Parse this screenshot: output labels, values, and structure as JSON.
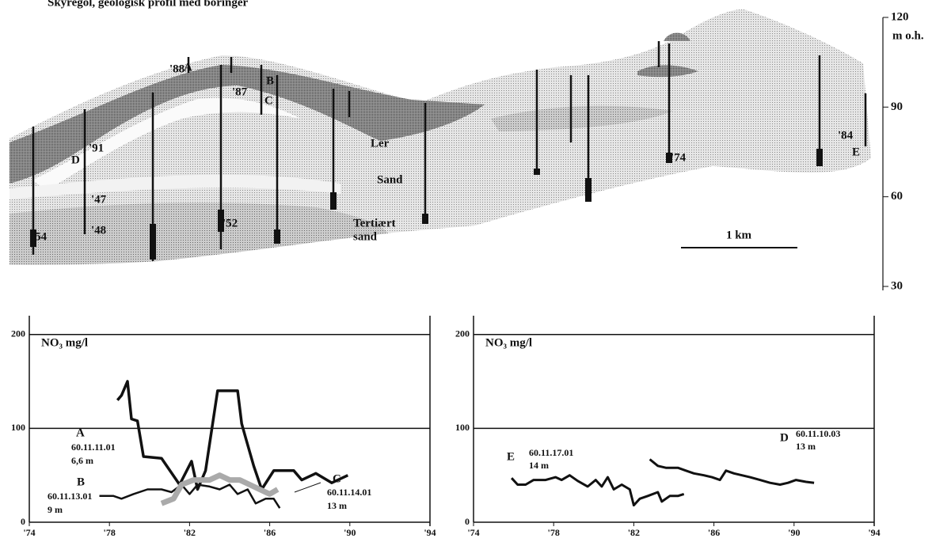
{
  "chart_data": [
    {
      "type": "profile",
      "title": "Skyregol, geologisk profil med boringer",
      "ylabel": "m o.h.",
      "ylim": [
        30,
        120
      ],
      "yticks": [
        30,
        60,
        90,
        120
      ],
      "scale_bar": "1 km",
      "annotations": [
        "'88",
        "A",
        "'87",
        "B",
        "C",
        "Ler",
        "Sand",
        "Tertiært",
        "sand",
        "'91",
        "D",
        "'47",
        "'48",
        "'54",
        "'52",
        "'74",
        "'84",
        "E"
      ]
    },
    {
      "type": "line",
      "ylabel": "NO₃ mg/l",
      "xlim": [
        1974,
        1994
      ],
      "ylim": [
        0,
        220
      ],
      "grid": true,
      "xticks": [
        {
          "value": 1974,
          "label": "'74"
        },
        {
          "value": 1978,
          "label": "'78"
        },
        {
          "value": 1982,
          "label": "'82"
        },
        {
          "value": 1986,
          "label": "'86"
        },
        {
          "value": 1990,
          "label": "'90"
        },
        {
          "value": 1994,
          "label": "'94"
        }
      ],
      "yticks": [
        0,
        100,
        200
      ],
      "series": [
        {
          "name": "A",
          "well": "60.11.11.01",
          "depth": "6,6 m",
          "color": "#111",
          "line_width": 3.5,
          "x": [
            1978.4,
            1978.6,
            1978.9,
            1979.1,
            1979.4,
            1979.7,
            1980.6,
            1981.5,
            1982.1,
            1982.4,
            1982.8,
            1983.4,
            1984.4,
            1984.6,
            1984.8,
            1985.2,
            1985.6,
            1986.2,
            1987.2,
            1987.6,
            1988.3,
            1989.1,
            1989.9
          ],
          "values": [
            130,
            135,
            150,
            110,
            108,
            70,
            68,
            40,
            65,
            35,
            55,
            140,
            140,
            105,
            90,
            60,
            35,
            55,
            55,
            45,
            52,
            42,
            50
          ]
        },
        {
          "name": "B",
          "well": "60.11.13.01",
          "depth": "9 m",
          "color": "#111",
          "line_width": 2.5,
          "x": [
            1977.5,
            1978.2,
            1978.6,
            1979.2,
            1979.9,
            1980.6,
            1981.1,
            1981.6,
            1982.0,
            1982.4,
            1983.0,
            1983.5,
            1984.0,
            1984.4,
            1984.9,
            1985.3,
            1985.8,
            1986.2,
            1986.5
          ],
          "values": [
            28,
            28,
            25,
            30,
            35,
            35,
            32,
            40,
            30,
            40,
            38,
            35,
            40,
            30,
            35,
            20,
            25,
            25,
            15
          ]
        },
        {
          "name": "C",
          "well": "60.11.14.01",
          "depth": "13 m",
          "color": "#aaa",
          "line_width": 7,
          "x": [
            1980.6,
            1981.2,
            1981.6,
            1982.2,
            1983.0,
            1983.5,
            1984.0,
            1984.5,
            1985.0,
            1985.5,
            1986.0,
            1986.4
          ],
          "values": [
            20,
            25,
            40,
            45,
            45,
            50,
            45,
            45,
            40,
            35,
            30,
            35
          ]
        }
      ]
    },
    {
      "type": "line",
      "ylabel": "NO₃ mg/l",
      "xlim": [
        1974,
        1994
      ],
      "ylim": [
        0,
        220
      ],
      "grid": true,
      "xticks": [
        {
          "value": 1974,
          "label": "'74"
        },
        {
          "value": 1978,
          "label": "'78"
        },
        {
          "value": 1982,
          "label": "'82"
        },
        {
          "value": 1986,
          "label": "'86"
        },
        {
          "value": 1990,
          "label": "'90"
        },
        {
          "value": 1994,
          "label": "'94"
        }
      ],
      "yticks": [
        0,
        100,
        200
      ],
      "series": [
        {
          "name": "E",
          "well": "60.11.17.01",
          "depth": "14 m",
          "color": "#111",
          "line_width": 3,
          "x": [
            1975.9,
            1976.2,
            1976.6,
            1977.0,
            1977.6,
            1978.1,
            1978.4,
            1978.8,
            1979.2,
            1979.7,
            1980.1,
            1980.4,
            1980.7,
            1981.0,
            1981.4,
            1981.8,
            1982.0,
            1982.3,
            1982.7,
            1983.2,
            1983.4,
            1983.8,
            1984.2,
            1984.5
          ],
          "values": [
            47,
            40,
            40,
            45,
            45,
            48,
            45,
            50,
            44,
            38,
            45,
            38,
            48,
            35,
            40,
            35,
            18,
            25,
            28,
            32,
            22,
            28,
            28,
            30
          ]
        },
        {
          "name": "D",
          "well": "60.11.10.03",
          "depth": "13 m",
          "color": "#111",
          "line_width": 3,
          "x": [
            1982.8,
            1983.2,
            1983.6,
            1984.2,
            1984.6,
            1985.0,
            1985.5,
            1985.9,
            1986.3,
            1986.6,
            1987.0,
            1987.4,
            1987.8,
            1988.3,
            1988.8,
            1989.3,
            1989.7,
            1990.1,
            1990.6,
            1991.0
          ],
          "values": [
            67,
            60,
            58,
            58,
            55,
            52,
            50,
            48,
            45,
            55,
            52,
            50,
            48,
            45,
            42,
            40,
            42,
            45,
            43,
            42
          ]
        }
      ]
    }
  ]
}
